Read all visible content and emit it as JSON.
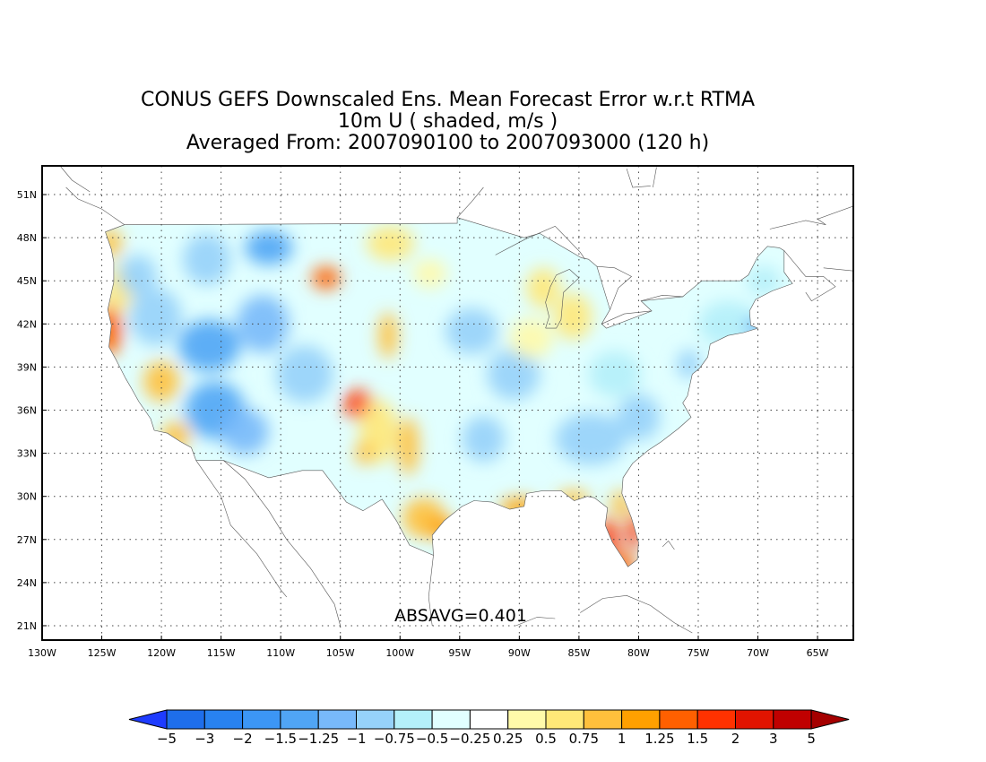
{
  "title": {
    "line1": "CONUS GEFS Downscaled Ens. Mean Forecast Error w.r.t RTMA",
    "line2": "10m U ( shaded, m/s )",
    "line3": "Averaged From: 2007090100 to 2007093000 (120 h)"
  },
  "stat_label": "ABSAVG=0.401",
  "map": {
    "lon_range": [
      -130,
      -62
    ],
    "lat_range": [
      20,
      53
    ],
    "lon_ticks": [
      -130,
      -125,
      -120,
      -115,
      -110,
      -105,
      -100,
      -95,
      -90,
      -85,
      -80,
      -75,
      -70,
      -65
    ],
    "lon_tick_labels": [
      "130W",
      "125W",
      "120W",
      "115W",
      "110W",
      "105W",
      "100W",
      "95W",
      "90W",
      "85W",
      "80W",
      "75W",
      "70W",
      "65W"
    ],
    "lat_ticks": [
      21,
      24,
      27,
      30,
      33,
      36,
      39,
      42,
      45,
      48,
      51
    ],
    "lat_tick_labels": [
      "21N",
      "24N",
      "27N",
      "30N",
      "33N",
      "36N",
      "39N",
      "42N",
      "45N",
      "48N",
      "51N"
    ],
    "grid": true,
    "grid_style": "dotted"
  },
  "colorbar": {
    "labels": [
      "−5",
      "−3",
      "−2",
      "−1.5",
      "−1.25",
      "−1",
      "−0.75",
      "−0.5",
      "−0.25",
      "0.25",
      "0.5",
      "0.75",
      "1",
      "1.25",
      "1.5",
      "2",
      "3",
      "5"
    ],
    "colors": [
      "#1e6eeb",
      "#2882f0",
      "#3c96f5",
      "#50a5f5",
      "#78b9fa",
      "#96d2fa",
      "#b4f0fa",
      "#e1ffff",
      "#ffffff",
      "#fffaaa",
      "#ffe878",
      "#ffc03c",
      "#ffa000",
      "#ff6000",
      "#ff3200",
      "#e11400",
      "#c00000"
    ],
    "under_color": "#1e3cff",
    "over_color": "#a50000"
  },
  "field_blobs": [
    {
      "lon": -124.4,
      "lat": 41.6,
      "val": 1.3,
      "rx": 1.1,
      "ry": 1.8
    },
    {
      "lon": -124.3,
      "lat": 47.6,
      "val": 0.9,
      "rx": 1.0,
      "ry": 1.0
    },
    {
      "lon": -123.6,
      "lat": 44.5,
      "val": 0.5,
      "rx": 1.3,
      "ry": 1.6
    },
    {
      "lon": -122.0,
      "lat": 45.4,
      "val": -0.8,
      "rx": 1.6,
      "ry": 1.4
    },
    {
      "lon": -120.0,
      "lat": 38.0,
      "val": 0.9,
      "rx": 1.5,
      "ry": 1.4
    },
    {
      "lon": -118.8,
      "lat": 34.2,
      "val": 0.9,
      "rx": 1.2,
      "ry": 1.0
    },
    {
      "lon": -120.5,
      "lat": 42.5,
      "val": -1.0,
      "rx": 2.2,
      "ry": 2.0
    },
    {
      "lon": -116.0,
      "lat": 40.5,
      "val": -1.4,
      "rx": 2.6,
      "ry": 1.8
    },
    {
      "lon": -115.5,
      "lat": 36.0,
      "val": -1.5,
      "rx": 2.5,
      "ry": 2.0
    },
    {
      "lon": -111.5,
      "lat": 42.0,
      "val": -1.2,
      "rx": 2.2,
      "ry": 2.0
    },
    {
      "lon": -111.0,
      "lat": 47.3,
      "val": -1.3,
      "rx": 2.0,
      "ry": 1.2
    },
    {
      "lon": -113.0,
      "lat": 34.5,
      "val": -1.2,
      "rx": 2.0,
      "ry": 1.6
    },
    {
      "lon": -116.2,
      "lat": 46.5,
      "val": -0.9,
      "rx": 2.0,
      "ry": 1.8
    },
    {
      "lon": -108.0,
      "lat": 38.5,
      "val": -0.8,
      "rx": 2.4,
      "ry": 2.0
    },
    {
      "lon": -106.2,
      "lat": 45.2,
      "val": 1.4,
      "rx": 1.2,
      "ry": 0.8
    },
    {
      "lon": -101.0,
      "lat": 41.2,
      "val": 0.8,
      "rx": 0.8,
      "ry": 1.6
    },
    {
      "lon": -103.5,
      "lat": 36.4,
      "val": 1.6,
      "rx": 1.2,
      "ry": 1.0
    },
    {
      "lon": -101.8,
      "lat": 34.5,
      "val": 0.6,
      "rx": 1.6,
      "ry": 2.2
    },
    {
      "lon": -103.0,
      "lat": 33.0,
      "val": 0.9,
      "rx": 0.8,
      "ry": 0.8
    },
    {
      "lon": -99.3,
      "lat": 33.5,
      "val": 0.9,
      "rx": 0.9,
      "ry": 2.0
    },
    {
      "lon": -98.0,
      "lat": 28.5,
      "val": 0.9,
      "rx": 1.8,
      "ry": 1.4
    },
    {
      "lon": -96.5,
      "lat": 27.8,
      "val": 1.2,
      "rx": 1.2,
      "ry": 0.8
    },
    {
      "lon": -100.8,
      "lat": 47.6,
      "val": 0.5,
      "rx": 2.0,
      "ry": 1.2
    },
    {
      "lon": -97.5,
      "lat": 45.5,
      "val": 0.4,
      "rx": 1.4,
      "ry": 1.0
    },
    {
      "lon": -94.0,
      "lat": 41.5,
      "val": -0.9,
      "rx": 2.2,
      "ry": 1.6
    },
    {
      "lon": -90.5,
      "lat": 38.5,
      "val": -1.0,
      "rx": 2.2,
      "ry": 1.8
    },
    {
      "lon": -93.0,
      "lat": 34.0,
      "val": -0.8,
      "rx": 1.8,
      "ry": 1.6
    },
    {
      "lon": -84.0,
      "lat": 34.0,
      "val": -0.9,
      "rx": 3.0,
      "ry": 1.8
    },
    {
      "lon": -80.0,
      "lat": 35.5,
      "val": -1.0,
      "rx": 1.8,
      "ry": 1.6
    },
    {
      "lon": -82.0,
      "lat": 38.5,
      "val": -0.7,
      "rx": 2.2,
      "ry": 1.6
    },
    {
      "lon": -88.0,
      "lat": 44.5,
      "val": 0.7,
      "rx": 1.4,
      "ry": 1.4
    },
    {
      "lon": -85.5,
      "lat": 42.5,
      "val": 0.6,
      "rx": 1.6,
      "ry": 1.6
    },
    {
      "lon": -89.0,
      "lat": 41.0,
      "val": 0.3,
      "rx": 1.8,
      "ry": 1.4
    },
    {
      "lon": -90.0,
      "lat": 29.2,
      "val": 1.1,
      "rx": 1.6,
      "ry": 0.7
    },
    {
      "lon": -85.5,
      "lat": 29.8,
      "val": 0.9,
      "rx": 1.4,
      "ry": 0.6
    },
    {
      "lon": -82.5,
      "lat": 27.0,
      "val": 1.9,
      "rx": 0.8,
      "ry": 1.6
    },
    {
      "lon": -80.4,
      "lat": 27.6,
      "val": 1.6,
      "rx": 0.6,
      "ry": 1.4
    },
    {
      "lon": -81.3,
      "lat": 25.2,
      "val": 1.3,
      "rx": 1.0,
      "ry": 0.9
    },
    {
      "lon": -81.5,
      "lat": 29.5,
      "val": 0.8,
      "rx": 0.8,
      "ry": 0.9
    },
    {
      "lon": -72.5,
      "lat": 42.0,
      "val": -0.6,
      "rx": 2.5,
      "ry": 1.6
    },
    {
      "lon": -70.2,
      "lat": 41.8,
      "val": -1.3,
      "rx": 0.7,
      "ry": 0.7
    },
    {
      "lon": -69.5,
      "lat": 45.0,
      "val": -0.6,
      "rx": 1.4,
      "ry": 1.0
    },
    {
      "lon": -75.8,
      "lat": 39.2,
      "val": -0.8,
      "rx": 1.0,
      "ry": 1.0
    }
  ]
}
